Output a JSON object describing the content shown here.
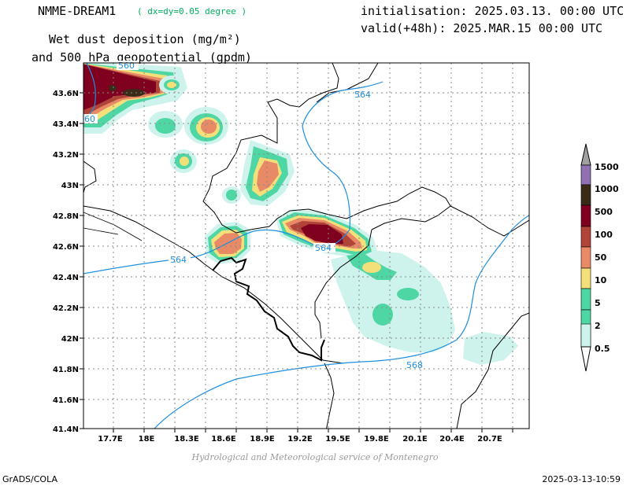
{
  "header": {
    "model": "NMME-DREAM1",
    "resolution": "( dx=dy=0.05 degree )",
    "title_line1": "Wet dust deposition (mg/m²)",
    "title_line2": "and 500 hPa geopotential (gpdm)",
    "init": "initialisation: 2025.03.13. 00:00 UTC",
    "valid": "valid(+48h): 2025.MAR.15 00:00 UTC"
  },
  "map": {
    "lat_ticks": [
      "43.6N",
      "43.4N",
      "43.2N",
      "43N",
      "42.8N",
      "42.6N",
      "42.4N",
      "42.2N",
      "42N",
      "41.8N",
      "41.6N",
      "41.4N"
    ],
    "lon_ticks": [
      "17.7E",
      "18E",
      "18.3E",
      "18.6E",
      "18.9E",
      "19.2E",
      "19.5E",
      "19.8E",
      "20.1E",
      "20.4E",
      "20.7E"
    ],
    "contour_labels": [
      "560",
      "564",
      "60",
      "564",
      "564",
      "568"
    ],
    "contour_color": "#1e90e0"
  },
  "legend": {
    "levels": [
      "1500",
      "1000",
      "500",
      "100",
      "50",
      "10",
      "5",
      "2",
      "0.5"
    ],
    "colors": [
      "#a0a0a0",
      "#9070b0",
      "#3a2a18",
      "#800020",
      "#b04438",
      "#e88a66",
      "#f4e07a",
      "#4ed6a4",
      "#cdf3ec"
    ]
  },
  "footer": {
    "credit": "Hydrological and Meteorological service of Montenegro",
    "software": "GrADS/COLA",
    "timestamp": "2025-03-13-10:59"
  }
}
